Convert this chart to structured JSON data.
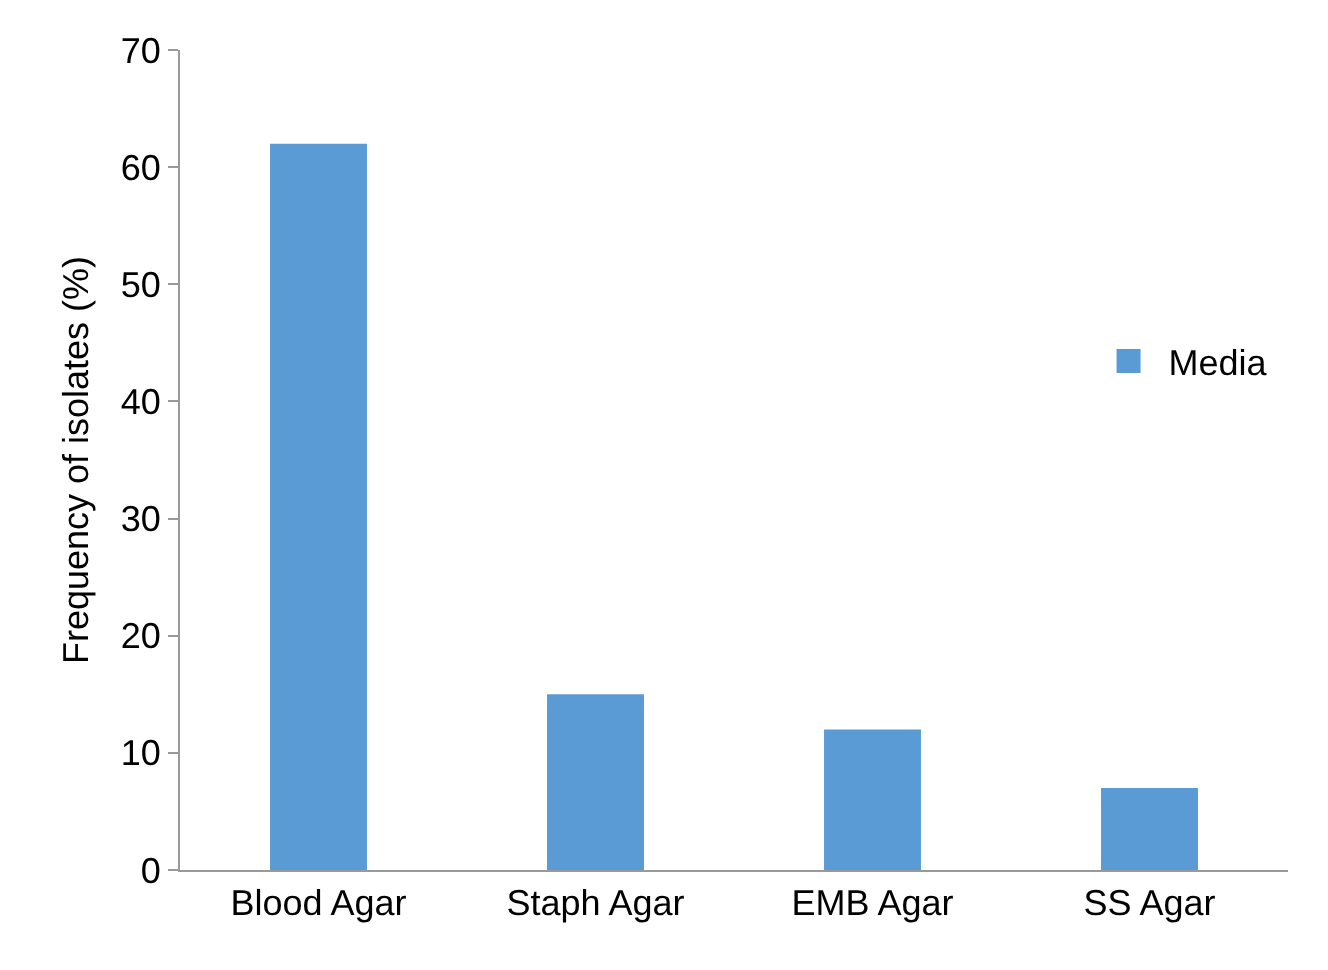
{
  "chart_data": {
    "type": "bar",
    "ylabel": "Frequency of isolates (%)",
    "categories": [
      "Blood Agar",
      "Staph Agar",
      "EMB Agar",
      "SS Agar"
    ],
    "series": [
      {
        "name": "Media",
        "color": "#5b9bd5",
        "values": [
          62,
          15,
          12,
          7
        ]
      }
    ],
    "ylim": [
      0,
      70
    ],
    "yticks": [
      0,
      10,
      20,
      30,
      40,
      50,
      60,
      70
    ],
    "grid": false,
    "legend": "right"
  }
}
